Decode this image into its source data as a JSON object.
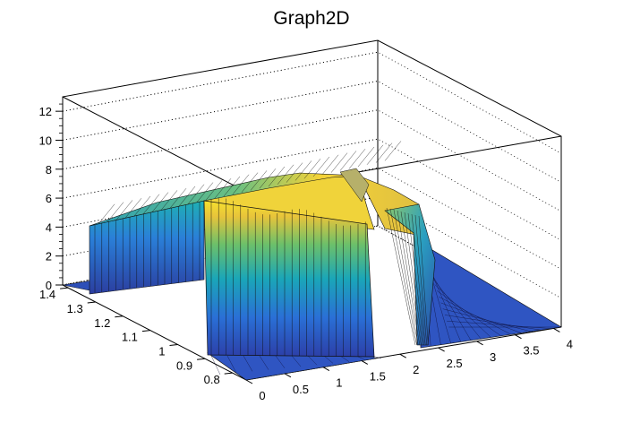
{
  "chart_data": {
    "type": "surface",
    "title": "Graph2D",
    "xlabel": "",
    "ylabel": "",
    "zlabel": "",
    "x_range": [
      0,
      4.1
    ],
    "y_range": [
      0.75,
      1.42
    ],
    "z_range": [
      0,
      13
    ],
    "x_ticks": [
      "0",
      "0.5",
      "1",
      "1.5",
      "2",
      "2.5",
      "3",
      "3.5",
      "4"
    ],
    "y_ticks": [
      "0.8",
      "0.9",
      "1",
      "1.1",
      "1.2",
      "1.3",
      "1.4"
    ],
    "z_ticks": [
      "0",
      "2",
      "4",
      "6",
      "8",
      "10",
      "12"
    ],
    "grid": true,
    "colormap": "parula",
    "surface_levels": {
      "plateau_height_back": 4.4,
      "plateau_height_front": 7.5,
      "peak_value": 8.5,
      "peak_x": 2.0,
      "peak_y": 1.2,
      "front_block_x_range": [
        0.0,
        1.35
      ],
      "front_block_y_range": [
        0.75,
        1.0
      ],
      "plateau_x_range": [
        0.0,
        2.1
      ],
      "plateau_y_range": [
        1.0,
        1.42
      ]
    }
  },
  "colors": {
    "low": "#352a87",
    "mid": "#21b3a0",
    "high": "#f9fb0e"
  }
}
